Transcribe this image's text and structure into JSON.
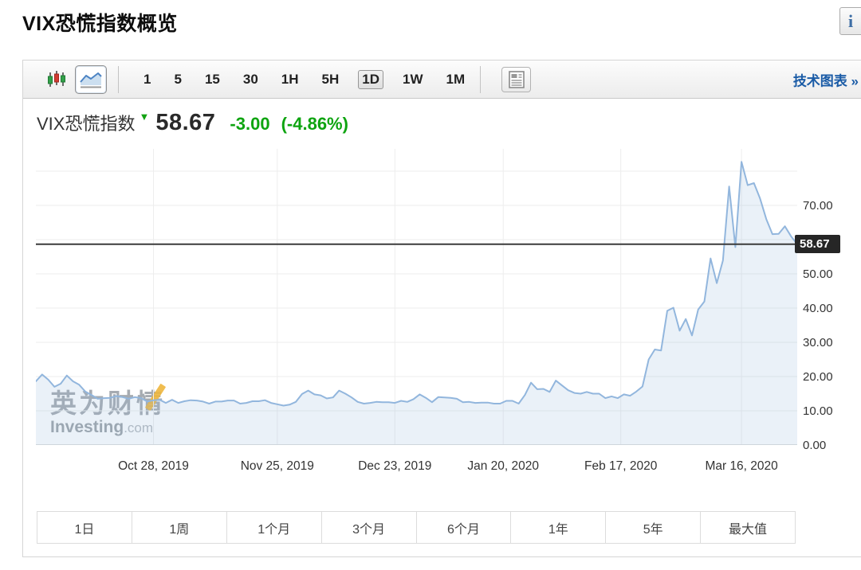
{
  "page": {
    "title": "VIX恐慌指数概览",
    "info_icon_glyph": "i"
  },
  "toolbar": {
    "chart_type_buttons": [
      {
        "icon": "candlestick-icon",
        "selected": false
      },
      {
        "icon": "line-chart-icon",
        "selected": true
      }
    ],
    "intervals": [
      {
        "label": "1"
      },
      {
        "label": "5"
      },
      {
        "label": "15"
      },
      {
        "label": "30"
      },
      {
        "label": "1H"
      },
      {
        "label": "5H"
      },
      {
        "label": "1D",
        "selected": true
      },
      {
        "label": "1W"
      },
      {
        "label": "1M"
      }
    ],
    "news_icon": "news-icon",
    "tech_link": "技术图表 »"
  },
  "quote": {
    "symbol": "VIX恐慌指数",
    "arrow": "▼",
    "direction": "down",
    "price": "58.67",
    "change": "-3.00",
    "change_pct": "(-4.86%)",
    "change_color": "#0ea410"
  },
  "watermark": {
    "line1": "英为财情",
    "brand": "Investing",
    "tld": ".com"
  },
  "range_buttons": [
    "1日",
    "1周",
    "1个月",
    "3个月",
    "6个月",
    "1年",
    "5年",
    "最大值"
  ],
  "chart_data": {
    "type": "area",
    "series_name": "VIX恐慌指数",
    "title": "VIX恐慌指数",
    "x_tick_labels": [
      "Oct 28, 2019",
      "Nov 25, 2019",
      "Dec 23, 2019",
      "Jan 20, 2020",
      "Feb 17, 2020",
      "Mar 16, 2020"
    ],
    "x_tick_indices": [
      19,
      39,
      58,
      75.5,
      94.5,
      114
    ],
    "y_tick_values": [
      0,
      10,
      20,
      30,
      40,
      50,
      70
    ],
    "y_tick_labels": [
      "0.00",
      "10.00",
      "20.00",
      "30.00",
      "40.00",
      "50.00",
      "70.00"
    ],
    "y_grid_values": [
      10,
      20,
      30,
      40,
      50,
      60,
      70,
      80
    ],
    "ylim": [
      0,
      86.5
    ],
    "grid": true,
    "last_price": 58.67,
    "last_price_label": "58.67",
    "line_color": "#92b6dd",
    "fill_color": "rgba(150,184,220,0.20)",
    "price_line_color": "#3b3b3b",
    "grid_color": "#ededed",
    "values": [
      18.6,
      20.6,
      19.1,
      17.0,
      17.9,
      20.3,
      18.6,
      17.6,
      15.6,
      14.6,
      13.5,
      13.7,
      13.8,
      14.3,
      14.0,
      13.5,
      14.0,
      13.7,
      12.7,
      13.1,
      13.2,
      12.3,
      13.2,
      12.3,
      12.8,
      13.1,
      13.0,
      12.7,
      12.1,
      12.7,
      12.7,
      13.0,
      13.0,
      12.1,
      12.3,
      12.8,
      12.8,
      13.1,
      12.3,
      11.9,
      11.5,
      11.8,
      12.6,
      14.9,
      15.9,
      14.8,
      14.5,
      13.6,
      13.9,
      15.9,
      15.0,
      13.9,
      12.6,
      12.1,
      12.3,
      12.6,
      12.5,
      12.5,
      12.3,
      12.9,
      12.6,
      13.4,
      14.8,
      13.8,
      12.5,
      14.0,
      13.9,
      13.8,
      13.5,
      12.5,
      12.6,
      12.3,
      12.4,
      12.4,
      12.1,
      12.1,
      12.9,
      12.9,
      12.1,
      14.6,
      18.2,
      16.3,
      16.4,
      15.5,
      18.8,
      17.4,
      16.0,
      15.2,
      15.0,
      15.5,
      15.0,
      15.0,
      13.7,
      14.2,
      13.7,
      14.8,
      14.4,
      15.6,
      17.1,
      25.0,
      27.9,
      27.6,
      39.2,
      40.1,
      33.4,
      36.8,
      32.0,
      39.6,
      41.9,
      54.5,
      47.3,
      53.9,
      75.5,
      57.8,
      82.7,
      75.9,
      76.5,
      72.0,
      66.0,
      61.6,
      61.7,
      63.9,
      61.0,
      58.67
    ]
  }
}
